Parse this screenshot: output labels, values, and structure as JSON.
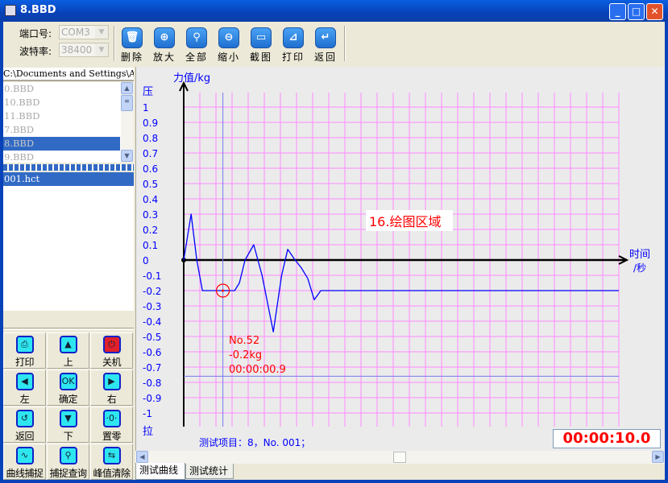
{
  "window": {
    "title": "8.BBD",
    "minimize": "_",
    "maximize": "□",
    "close": "✕"
  },
  "toolbar": {
    "port_label": "端口号:",
    "port_value": "COM3",
    "baud_label": "波特率:",
    "baud_value": "38400",
    "buttons": [
      {
        "label": "删除",
        "icon": "trash-icon",
        "glyph": "🗑"
      },
      {
        "label": "放大",
        "icon": "zoom-in-icon",
        "glyph": "⊕"
      },
      {
        "label": "全部",
        "icon": "zoom-all-icon",
        "glyph": "⚲"
      },
      {
        "label": "缩小",
        "icon": "zoom-out-icon",
        "glyph": "⊖"
      },
      {
        "label": "截图",
        "icon": "camera-icon",
        "glyph": "▭"
      },
      {
        "label": "打印",
        "icon": "chart-print-icon",
        "glyph": "⊿"
      },
      {
        "label": "返回",
        "icon": "return-icon",
        "glyph": "↵"
      }
    ]
  },
  "sidebar": {
    "path": "C:\\Documents and Settings\\Administrator",
    "files": [
      "0.BBD",
      "10.BBD",
      "11.BBD",
      "7.BBD",
      "8.BBD",
      "9.BBD"
    ],
    "selected_file": "8.BBD",
    "tests": [
      "001.hct"
    ],
    "pad": [
      {
        "label": "打印",
        "icon": "printer-icon",
        "glyph": "⎙"
      },
      {
        "label": "上",
        "icon": "arrow-up-icon",
        "glyph": "▲"
      },
      {
        "label": "关机",
        "icon": "power-icon",
        "glyph": "⏻"
      },
      {
        "label": "左",
        "icon": "arrow-left-icon",
        "glyph": "◀"
      },
      {
        "label": "确定",
        "icon": "ok-icon",
        "glyph": "OK"
      },
      {
        "label": "右",
        "icon": "arrow-right-icon",
        "glyph": "▶"
      },
      {
        "label": "返回",
        "icon": "return-icon",
        "glyph": "↺"
      },
      {
        "label": "下",
        "icon": "arrow-down-icon",
        "glyph": "▼"
      },
      {
        "label": "置零",
        "icon": "zero-icon",
        "glyph": "·0·"
      },
      {
        "label": "曲线捕捉",
        "icon": "curve-icon",
        "glyph": "∿"
      },
      {
        "label": "捕捉查询",
        "icon": "search-icon",
        "glyph": "⚲"
      },
      {
        "label": "峰值清除",
        "icon": "peak-clear-icon",
        "glyph": "⇆"
      }
    ]
  },
  "chart_data": {
    "type": "line",
    "ylabel": "力值/kg",
    "xlabel_line1": "时间",
    "xlabel_line2": "/秒",
    "y_top_label": "压",
    "y_bottom_label": "拉",
    "ylim": [
      -1,
      1
    ],
    "xlim": [
      0,
      10
    ],
    "y_ticks": [
      "1",
      "0.9",
      "0.8",
      "0.7",
      "0.6",
      "0.5",
      "0.4",
      "0.3",
      "0.2",
      "0.1",
      "0",
      "-0.1",
      "-0.2",
      "-0.3",
      "-0.4",
      "-0.5",
      "-0.6",
      "-0.7",
      "-0.8",
      "-0.9",
      "-1"
    ],
    "grid": true,
    "series": [
      {
        "color": "#0000ff",
        "x": [
          0,
          0.17,
          0.3,
          0.43,
          1.17,
          1.28,
          1.41,
          1.61,
          1.8,
          2.06,
          2.25,
          2.39,
          2.56,
          2.7,
          2.85,
          3.0,
          3.15,
          10
        ],
        "y": [
          0,
          0.3,
          0.0,
          -0.2,
          -0.2,
          -0.15,
          0,
          0.1,
          -0.1,
          -0.47,
          -0.1,
          0.07,
          0,
          -0.05,
          -0.12,
          -0.26,
          -0.2,
          -0.2
        ]
      }
    ],
    "threshold_line": -0.76,
    "annotation_text": "16.绘图区域",
    "cursor": {
      "x": 0.9,
      "y": -0.2,
      "lines": [
        "No.52",
        "-0.2kg",
        "00:00:00.9"
      ]
    },
    "footer": "测试项目：8，No. 001；",
    "timer": "00:00:10.0"
  },
  "tabs": [
    "测试曲线",
    "测试统计"
  ],
  "colors": {
    "grid": "#ff88ff",
    "curve": "#0000ff",
    "marker": "#ff0000",
    "axis_label": "#0000ff"
  }
}
